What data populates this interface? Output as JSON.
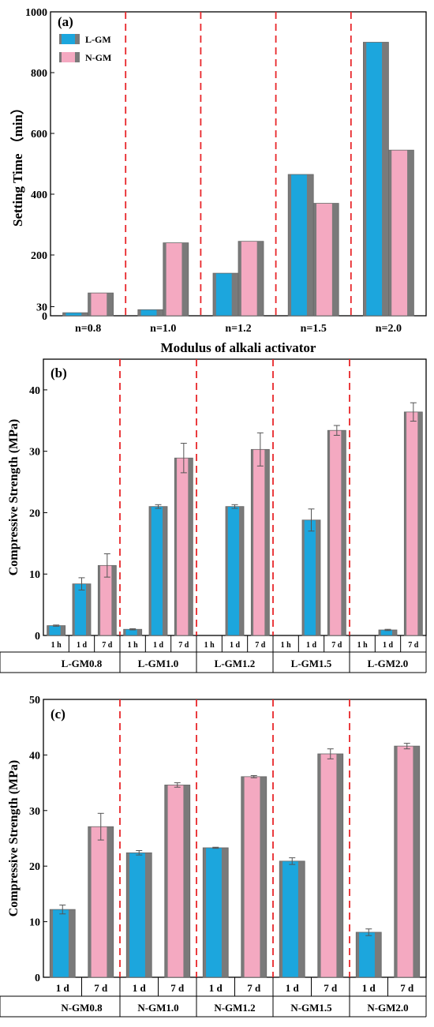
{
  "colors": {
    "blue": "#1ca6dd",
    "pink": "#f4a9c1",
    "bar_edge": "#7a7a7a",
    "divider": "#e8262a",
    "error_bar": "#555555"
  },
  "chart_data": [
    {
      "type": "bar",
      "panel_label": "(a)",
      "categories": [
        "n=0.8",
        "n=1.0",
        "n=1.2",
        "n=1.5",
        "n=2.0"
      ],
      "series": [
        {
          "name": "L-GM",
          "values": [
            10,
            20,
            140,
            465,
            900
          ]
        },
        {
          "name": "N-GM",
          "values": [
            75,
            240,
            245,
            370,
            545
          ]
        }
      ],
      "xlabel": "Modulus of alkali activator",
      "ylabel": "Setting Time （min）",
      "ylim": [
        0,
        1000
      ],
      "yticks": [
        0,
        30,
        200,
        400,
        600,
        800,
        1000
      ],
      "legend": "top-left",
      "dividers": true
    },
    {
      "type": "bar",
      "panel_label": "(b)",
      "groups": [
        "L-GM0.8",
        "L-GM1.0",
        "L-GM1.2",
        "L-GM1.5",
        "L-GM2.0"
      ],
      "ages": [
        "1 h",
        "1 d",
        "7 d"
      ],
      "series": [
        {
          "age": "1 h",
          "values": [
            1.6,
            1.0,
            0,
            0,
            0
          ],
          "errors": [
            0.1,
            0.1,
            0,
            0,
            0
          ]
        },
        {
          "age": "1 d",
          "values": [
            8.4,
            21.0,
            21.0,
            18.8,
            0.9
          ],
          "errors": [
            1.0,
            0.3,
            0.3,
            1.8,
            0.1
          ]
        },
        {
          "age": "7 d",
          "values": [
            11.4,
            28.9,
            30.3,
            33.4,
            36.4
          ],
          "errors": [
            1.9,
            2.4,
            2.7,
            0.8,
            1.5
          ]
        }
      ],
      "ylabel": "Compressive Strength (MPa)",
      "ylim": [
        0,
        45
      ],
      "yticks": [
        0,
        10,
        20,
        30,
        40
      ],
      "dividers": true
    },
    {
      "type": "bar",
      "panel_label": "(c)",
      "groups": [
        "N-GM0.8",
        "N-GM1.0",
        "N-GM1.2",
        "N-GM1.5",
        "N-GM2.0"
      ],
      "ages": [
        "1 d",
        "7 d"
      ],
      "series": [
        {
          "age": "1 d",
          "values": [
            12.2,
            22.4,
            23.3,
            20.9,
            8.1
          ],
          "errors": [
            0.8,
            0.4,
            0.1,
            0.6,
            0.6
          ]
        },
        {
          "age": "7 d",
          "values": [
            27.1,
            34.6,
            36.1,
            40.2,
            41.6
          ],
          "errors": [
            2.4,
            0.4,
            0.2,
            0.9,
            0.5
          ]
        }
      ],
      "ylabel": "Compressive Strength (MPa)",
      "ylim": [
        0,
        50
      ],
      "yticks": [
        0,
        10,
        20,
        30,
        40,
        50
      ],
      "dividers": true
    }
  ]
}
